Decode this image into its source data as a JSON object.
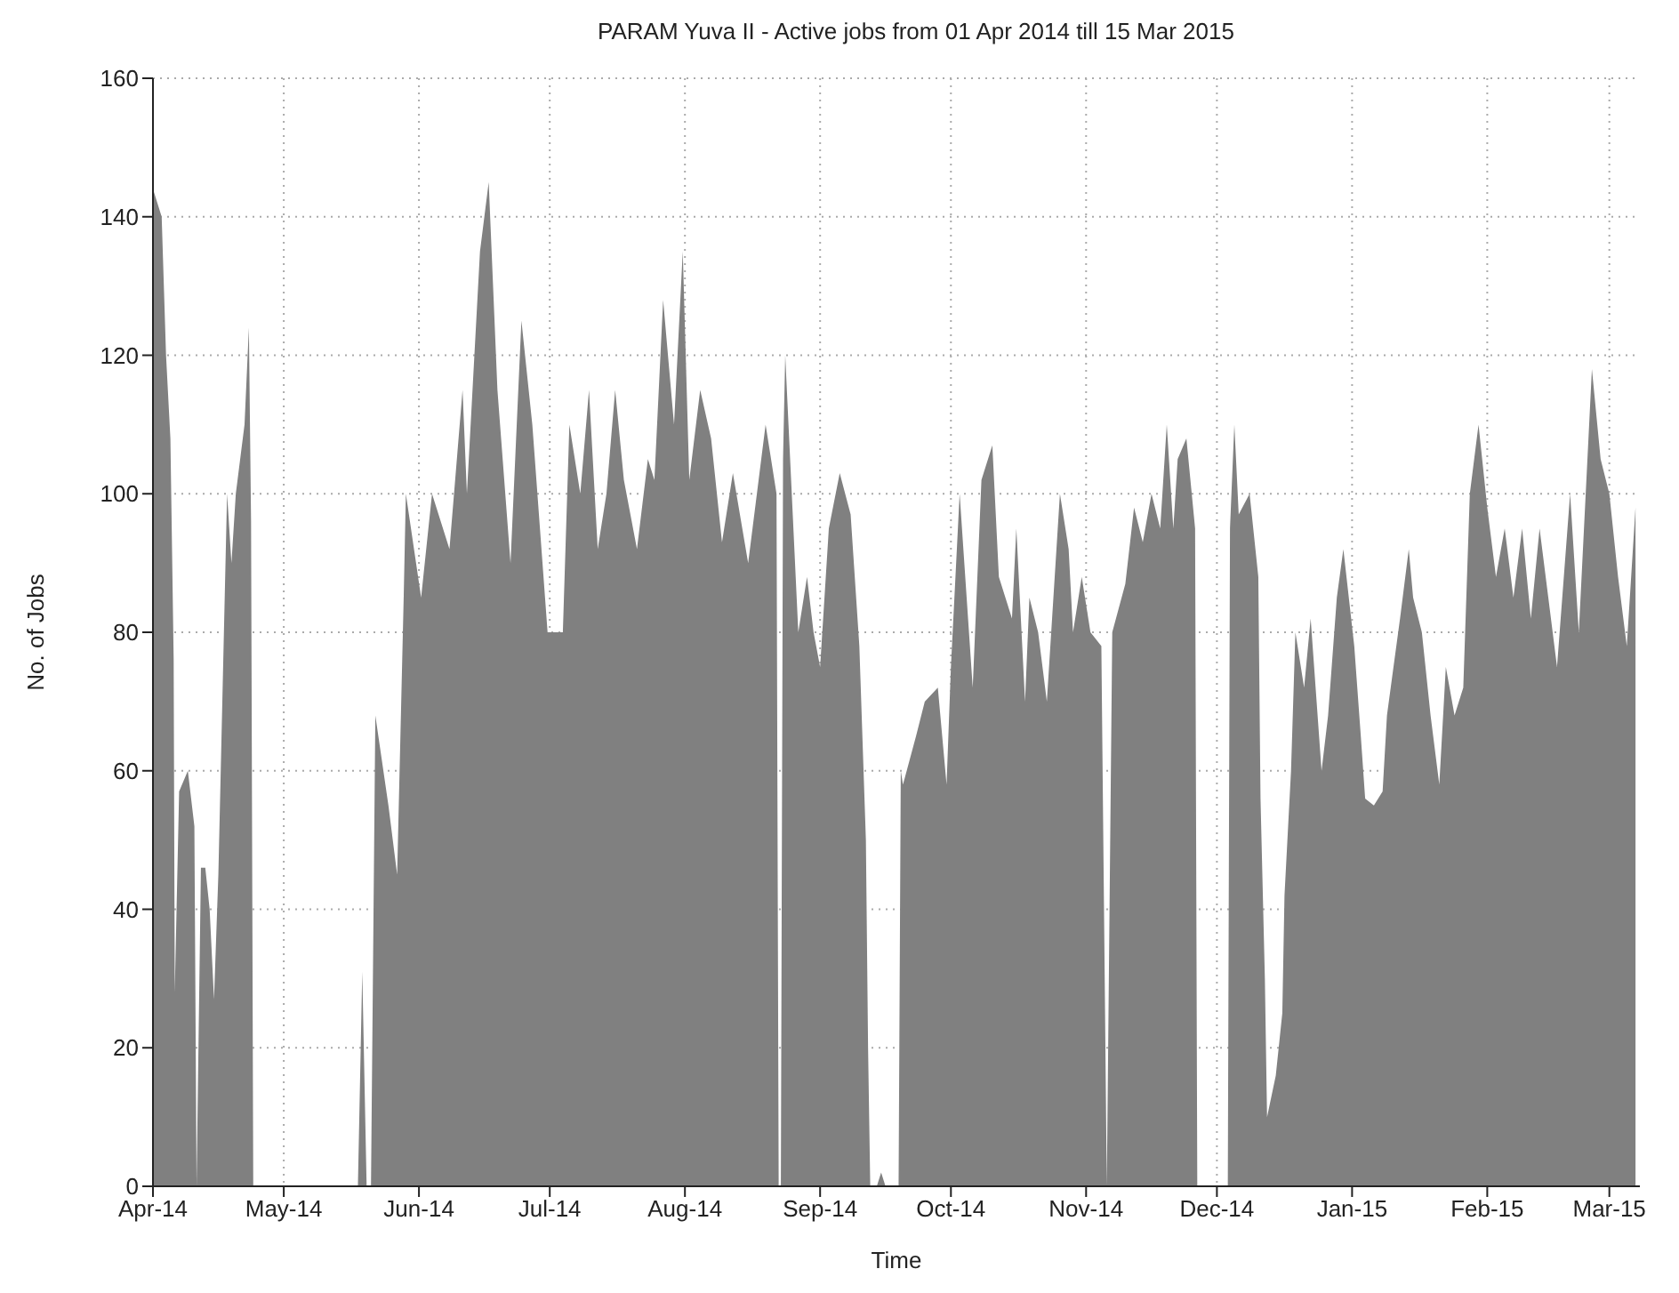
{
  "chart_data": {
    "type": "area",
    "title": "PARAM Yuva II - Active jobs from 01 Apr 2014 till 15 Mar 2015",
    "xlabel": "Time",
    "ylabel": "No. of Jobs",
    "x": [
      "2014-04-01",
      "2014-04-03",
      "2014-04-04",
      "2014-04-05",
      "2014-04-05T18:00",
      "2014-04-06",
      "2014-04-07",
      "2014-04-09",
      "2014-04-10T12:00",
      "2014-04-11",
      "2014-04-12",
      "2014-04-13",
      "2014-04-14",
      "2014-04-15",
      "2014-04-16",
      "2014-04-18",
      "2014-04-19",
      "2014-04-20",
      "2014-04-22",
      "2014-04-23",
      "2014-04-23T12:00",
      "2014-04-24",
      "2014-05-18",
      "2014-05-19",
      "2014-05-20",
      "2014-05-21",
      "2014-05-22",
      "2014-05-25",
      "2014-05-27",
      "2014-05-28T12:00",
      "2014-05-29",
      "2014-06-01T12:00",
      "2014-06-04",
      "2014-06-08",
      "2014-06-11",
      "2014-06-12",
      "2014-06-15",
      "2014-06-17",
      "2014-06-19",
      "2014-06-22",
      "2014-06-24T12:00",
      "2014-06-27",
      "2014-06-30T12:00",
      "2014-07-04",
      "2014-07-05T12:00",
      "2014-07-08",
      "2014-07-10",
      "2014-07-12",
      "2014-07-14",
      "2014-07-16",
      "2014-07-18",
      "2014-07-21",
      "2014-07-23T12:00",
      "2014-07-25",
      "2014-07-27",
      "2014-07-29T12:00",
      "2014-07-31T12:00",
      "2014-08-02",
      "2014-08-04T12:00",
      "2014-08-07",
      "2014-08-09T12:00",
      "2014-08-12",
      "2014-08-15T12:00",
      "2014-08-19T12:00",
      "2014-08-22",
      "2014-08-22T12:00",
      "2014-08-23",
      "2014-08-23T12:00",
      "2014-08-24",
      "2014-08-27",
      "2014-08-29",
      "2014-08-30T12:00",
      "2014-09-01",
      "2014-09-03",
      "2014-09-05T12:00",
      "2014-09-08",
      "2014-09-10",
      "2014-09-11T12:00",
      "2014-09-12",
      "2014-09-12T12:00",
      "2014-09-14",
      "2014-09-15",
      "2014-09-16",
      "2014-09-19",
      "2014-09-19T12:00",
      "2014-09-20",
      "2014-09-23",
      "2014-09-25",
      "2014-09-28",
      "2014-09-30",
      "2014-10-01",
      "2014-10-03",
      "2014-10-06",
      "2014-10-08",
      "2014-10-10T12:00",
      "2014-10-12",
      "2014-10-15",
      "2014-10-16",
      "2014-10-18",
      "2014-10-19",
      "2014-10-21",
      "2014-10-23",
      "2014-10-26",
      "2014-10-28",
      "2014-10-29",
      "2014-10-31",
      "2014-11-02",
      "2014-11-04T12:00",
      "2014-11-05T18:00",
      "2014-11-07",
      "2014-11-10",
      "2014-11-12",
      "2014-11-14",
      "2014-11-16",
      "2014-11-18",
      "2014-11-19T12:00",
      "2014-11-21",
      "2014-11-22",
      "2014-11-24",
      "2014-11-26",
      "2014-11-26T12:00",
      "2014-12-03T12:00",
      "2014-12-04",
      "2014-12-05",
      "2014-12-06",
      "2014-12-08T12:00",
      "2014-12-10T12:00",
      "2014-12-11",
      "2014-12-12",
      "2014-12-12T12:00",
      "2014-12-14T12:00",
      "2014-12-16",
      "2014-12-16T12:00",
      "2014-12-18",
      "2014-12-19",
      "2014-12-21",
      "2014-12-22T12:00",
      "2014-12-25",
      "2014-12-26T12:00",
      "2014-12-28T12:00",
      "2014-12-30",
      "2015-01-01T12:00",
      "2015-01-03",
      "2015-01-04",
      "2015-01-06",
      "2015-01-08",
      "2015-01-09",
      "2015-01-12",
      "2015-01-14",
      "2015-01-15",
      "2015-01-17",
      "2015-01-19",
      "2015-01-21",
      "2015-01-22T12:00",
      "2015-01-24T12:00",
      "2015-01-26T12:00",
      "2015-01-28",
      "2015-01-30",
      "2015-02-01",
      "2015-02-03",
      "2015-02-05",
      "2015-02-07",
      "2015-02-09",
      "2015-02-11",
      "2015-02-13",
      "2015-02-15",
      "2015-02-17",
      "2015-02-20",
      "2015-02-22",
      "2015-02-25",
      "2015-02-27",
      "2015-03-01",
      "2015-03-03",
      "2015-03-05",
      "2015-03-07"
    ],
    "series": [
      {
        "color": "#808080",
        "values": [
          144,
          140,
          120,
          108,
          76,
          28,
          57,
          60,
          52,
          0,
          46,
          46,
          40,
          27,
          45,
          100,
          90,
          100,
          110,
          124,
          96,
          0,
          0,
          31,
          0,
          0,
          68,
          55,
          45,
          85,
          100,
          85,
          100,
          92,
          115,
          100,
          135,
          145,
          115,
          90,
          125,
          110,
          80,
          80,
          110,
          100,
          115,
          92,
          100,
          115,
          102,
          92,
          105,
          102,
          128,
          110,
          135,
          102,
          115,
          108,
          93,
          103,
          90,
          110,
          100,
          0,
          0,
          105,
          120,
          80,
          88,
          80,
          75,
          95,
          103,
          97,
          78,
          50,
          20,
          0,
          0,
          2,
          0,
          0,
          60,
          58,
          65,
          70,
          72,
          58,
          75,
          100,
          72,
          102,
          107,
          88,
          82,
          95,
          70,
          85,
          80,
          70,
          100,
          92,
          80,
          88,
          80,
          78,
          0,
          80,
          87,
          98,
          93,
          100,
          95,
          110,
          95,
          105,
          108,
          95,
          0,
          0,
          95,
          110,
          97,
          100,
          88,
          56,
          30,
          10,
          16,
          25,
          42,
          60,
          80,
          72,
          82,
          60,
          68,
          85,
          92,
          78,
          65,
          56,
          55,
          57,
          68,
          82,
          92,
          85,
          80,
          68,
          58,
          75,
          68,
          72,
          100,
          110,
          98,
          88,
          95,
          85,
          95,
          82,
          95,
          85,
          75,
          100,
          80,
          118,
          105,
          100,
          88,
          78,
          98
        ]
      }
    ],
    "xlim": [
      "2014-04-01",
      "2015-03-08"
    ],
    "xticks": [
      {
        "value": "2014-04-01",
        "label": "Apr-14"
      },
      {
        "value": "2014-05-01",
        "label": "May-14"
      },
      {
        "value": "2014-06-01",
        "label": "Jun-14"
      },
      {
        "value": "2014-07-01",
        "label": "Jul-14"
      },
      {
        "value": "2014-08-01",
        "label": "Aug-14"
      },
      {
        "value": "2014-09-01",
        "label": "Sep-14"
      },
      {
        "value": "2014-10-01",
        "label": "Oct-14"
      },
      {
        "value": "2014-11-01",
        "label": "Nov-14"
      },
      {
        "value": "2014-12-01",
        "label": "Dec-14"
      },
      {
        "value": "2015-01-01",
        "label": "Jan-15"
      },
      {
        "value": "2015-02-01",
        "label": "Feb-15"
      },
      {
        "value": "2015-03-01",
        "label": "Mar-15"
      }
    ],
    "ylim": [
      0,
      160
    ],
    "yticks": [
      0,
      20,
      40,
      60,
      80,
      100,
      120,
      140,
      160
    ],
    "grid": true,
    "legend": false
  }
}
